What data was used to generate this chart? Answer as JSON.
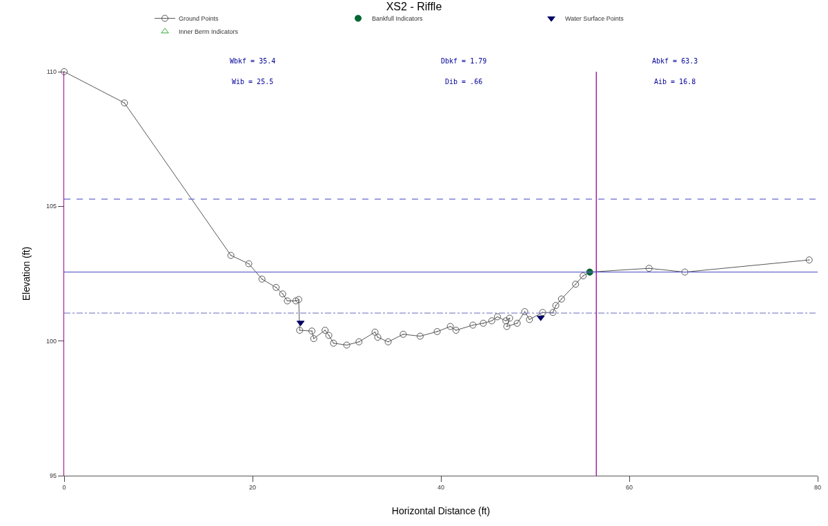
{
  "chart_data": {
    "type": "line",
    "title": "XS2 - Riffle",
    "xlabel": "Horizontal Distance (ft)",
    "ylabel": "Elevation (ft)",
    "xlim": [
      0,
      80
    ],
    "xticks": [
      0,
      20,
      40,
      60,
      80
    ],
    "ylim": [
      95,
      110
    ],
    "yticks": [
      95,
      100,
      105,
      110
    ],
    "grid": false,
    "legend": "top",
    "series": [
      {
        "name": "Ground Points",
        "marker": "circle",
        "color": "#555555",
        "x": [
          0,
          6.4,
          17.7,
          19.6,
          21.0,
          22.5,
          23.2,
          23.7,
          24.6,
          24.9,
          25.0,
          26.3,
          26.5,
          27.7,
          28.1,
          28.6,
          30.0,
          31.3,
          33.0,
          33.3,
          34.4,
          36.0,
          37.8,
          39.6,
          41.0,
          41.6,
          43.4,
          44.5,
          45.4,
          46.0,
          46.9,
          47.3,
          47.0,
          48.1,
          48.9,
          49.4,
          50.8,
          51.9,
          52.2,
          52.8,
          54.3,
          55.1,
          55.8,
          62.1,
          65.9,
          79.1
        ],
        "values": [
          110,
          108.84,
          103.18,
          102.87,
          102.3,
          101.99,
          101.75,
          101.49,
          101.49,
          101.54,
          100.4,
          100.37,
          100.09,
          100.4,
          100.21,
          99.92,
          99.85,
          99.97,
          100.33,
          100.14,
          99.97,
          100.25,
          100.18,
          100.35,
          100.54,
          100.4,
          100.59,
          100.66,
          100.75,
          100.9,
          100.75,
          100.85,
          100.54,
          100.66,
          101.09,
          100.8,
          101.06,
          101.06,
          101.32,
          101.56,
          102.11,
          102.42,
          102.56,
          102.7,
          102.56,
          103.01
        ]
      },
      {
        "name": "Bankfull Indicators",
        "type": "scatter",
        "marker": "circle",
        "color": "#006633",
        "x": [
          55.8
        ],
        "values": [
          102.56
        ]
      },
      {
        "name": "Water Surface Points",
        "type": "scatter",
        "marker": "triangle",
        "color": "#000066",
        "x": [
          25.1,
          50.6
        ],
        "values": [
          100.68,
          100.87
        ]
      },
      {
        "name": "Inner Berm Indicators",
        "type": "scatter",
        "marker": "triangle",
        "color": "#33aa33"
      }
    ],
    "ref_lines": [
      {
        "axis": "y",
        "value": 105.27,
        "color": "#6666cc",
        "line_style": "dashed"
      },
      {
        "axis": "y",
        "value": 102.56,
        "color": "#6666cc",
        "line_style": "solid"
      },
      {
        "axis": "y",
        "value": 101.04,
        "color": "#8888cc",
        "line_style": "dotted"
      },
      {
        "axis": "x",
        "value": 56.5,
        "color": "#990099",
        "line_style": "solid"
      }
    ],
    "annotations": [
      "Wbkf = 35.4",
      "Wib = 25.5",
      "Dbkf = 1.79",
      "Dib = .66",
      "Abkf = 63.3",
      "Aib = 16.8"
    ]
  }
}
